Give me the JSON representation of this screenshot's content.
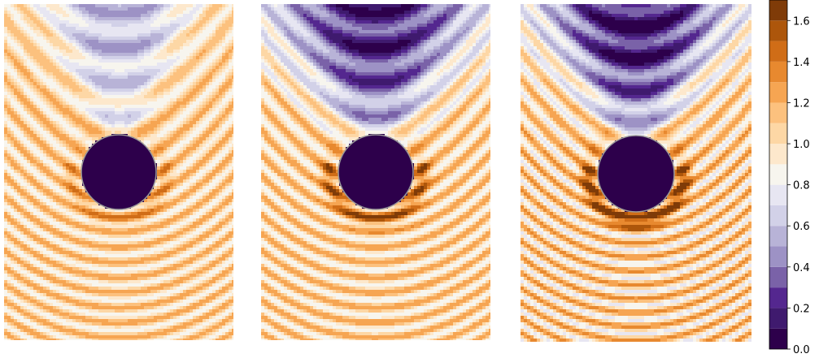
{
  "chart_data": [
    {
      "type": "heatmap",
      "panel": "left",
      "title": "",
      "xlabel": "",
      "ylabel": "",
      "description_values": {
        "obstacle_value": 0.0,
        "shadow_min": 0.5,
        "bright_ring_max": 1.3,
        "background": 1.1
      }
    },
    {
      "type": "heatmap",
      "panel": "middle",
      "title": "",
      "xlabel": "",
      "ylabel": "",
      "description_values": {
        "obstacle_value": 0.0,
        "shadow_min": 0.1,
        "bright_ring_max": 1.5,
        "background": 1.1
      }
    },
    {
      "type": "heatmap",
      "panel": "right",
      "title": "",
      "xlabel": "",
      "ylabel": "",
      "description_values": {
        "obstacle_value": 0.0,
        "shadow_min": 0.05,
        "bright_ring_max": 1.6,
        "background": 1.1
      }
    }
  ],
  "colorbar": {
    "ticks": [
      "0.0",
      "0.2",
      "0.4",
      "0.6",
      "0.8",
      "1.0",
      "1.2",
      "1.4",
      "1.6"
    ],
    "tick_values": [
      0.0,
      0.2,
      0.4,
      0.6,
      0.8,
      1.0,
      1.2,
      1.4,
      1.6
    ],
    "range": [
      0.0,
      1.7
    ],
    "levels": [
      {
        "from": 0.0,
        "to": 0.1,
        "color": "#2d004b"
      },
      {
        "from": 0.1,
        "to": 0.2,
        "color": "#3f1a6e"
      },
      {
        "from": 0.2,
        "to": 0.3,
        "color": "#54278f"
      },
      {
        "from": 0.3,
        "to": 0.4,
        "color": "#7a62a8"
      },
      {
        "from": 0.4,
        "to": 0.5,
        "color": "#9d92c5"
      },
      {
        "from": 0.5,
        "to": 0.6,
        "color": "#b8b3d7"
      },
      {
        "from": 0.6,
        "to": 0.7,
        "color": "#d2d1e8"
      },
      {
        "from": 0.7,
        "to": 0.8,
        "color": "#e7e6f2"
      },
      {
        "from": 0.8,
        "to": 0.9,
        "color": "#f7f5ee"
      },
      {
        "from": 0.9,
        "to": 1.0,
        "color": "#fde8cc"
      },
      {
        "from": 1.0,
        "to": 1.1,
        "color": "#fdd7a5"
      },
      {
        "from": 1.1,
        "to": 1.2,
        "color": "#fcc17e"
      },
      {
        "from": 1.2,
        "to": 1.3,
        "color": "#f6a552"
      },
      {
        "from": 1.3,
        "to": 1.4,
        "color": "#e8892f"
      },
      {
        "from": 1.4,
        "to": 1.5,
        "color": "#d06d17"
      },
      {
        "from": 1.5,
        "to": 1.6,
        "color": "#ad560b"
      },
      {
        "from": 1.6,
        "to": 1.7,
        "color": "#7f3b08"
      }
    ]
  }
}
